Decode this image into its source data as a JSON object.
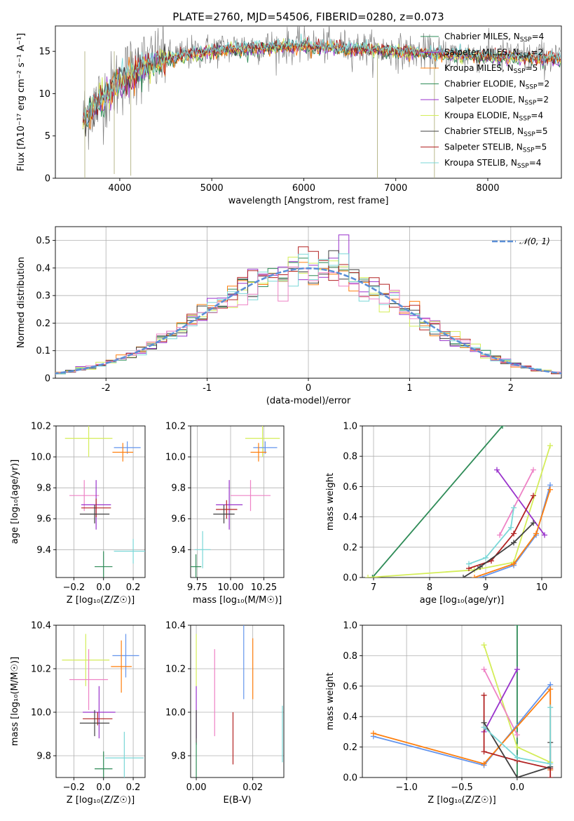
{
  "figure": {
    "title": "PLATE=2760, MJD=54506, FIBERID=0280, z=0.073",
    "colors": {
      "chabrier_miles": "#6495ed",
      "salpeter_miles": "#ff7f0e",
      "kroupa_miles": "#e07a20",
      "chabrier_elodie": "#2e8b57",
      "salpeter_elodie": "#9932cc",
      "kroupa_elodie": "#d4ed59",
      "chabrier_stelib": "#404040",
      "salpeter_stelib": "#b22222",
      "kroupa_stelib": "#7ad7d7",
      "pink": "#ee82c5",
      "gaussian": "#5b8fd6",
      "grid": "#b0b0b0"
    }
  },
  "legend": {
    "entries": [
      {
        "base": "Chabrier MILES, N",
        "sub": "SSP",
        "tail": "=4",
        "color": "#2e8b57"
      },
      {
        "base": "Salpeter MILES, N",
        "sub": "SSP",
        "tail": "=2",
        "color": "#9932cc"
      },
      {
        "base": "Kroupa MILES, N",
        "sub": "SSP",
        "tail": "=5",
        "color": "#ff7f0e"
      },
      {
        "base": "Chabrier ELODIE, N",
        "sub": "SSP",
        "tail": "=2",
        "color": "#2e8b57"
      },
      {
        "base": "Salpeter ELODIE, N",
        "sub": "SSP",
        "tail": "=2",
        "color": "#9932cc"
      },
      {
        "base": "Kroupa ELODIE, N",
        "sub": "SSP",
        "tail": "=4",
        "color": "#d4ed59"
      },
      {
        "base": "Chabrier STELIB, N",
        "sub": "SSP",
        "tail": "=5",
        "color": "#404040"
      },
      {
        "base": "Salpeter STELIB, N",
        "sub": "SSP",
        "tail": "=5",
        "color": "#b22222"
      },
      {
        "base": "Kroupa STELIB, N",
        "sub": "SSP",
        "tail": "=4",
        "color": "#7ad7d7"
      }
    ],
    "gaussian_label": "𝒩(0, 1)"
  },
  "chart_data": [
    {
      "id": "spectrum",
      "type": "line",
      "xlabel": "wavelength [Angstrom, rest frame]",
      "ylabel": "Flux [fλ10⁻¹⁷ erg cm⁻² s⁻¹ A⁻¹]",
      "xlim": [
        3300,
        8800
      ],
      "ylim": [
        0,
        18
      ],
      "xticks": [
        4000,
        5000,
        6000,
        7000,
        8000
      ],
      "yticks": [
        0,
        5,
        10,
        15
      ],
      "grid": false,
      "legend_position": "right",
      "data_trend": [
        [
          3600,
          7.0
        ],
        [
          3700,
          8.5
        ],
        [
          3800,
          9.5
        ],
        [
          3900,
          10.5
        ],
        [
          4000,
          11.5
        ],
        [
          4100,
          12.5
        ],
        [
          4200,
          13.2
        ],
        [
          4300,
          13.5
        ],
        [
          4400,
          13.8
        ],
        [
          4500,
          14.2
        ],
        [
          4700,
          14.6
        ],
        [
          5000,
          15.2
        ],
        [
          5300,
          15.5
        ],
        [
          5600,
          15.6
        ],
        [
          6000,
          15.7
        ],
        [
          6300,
          15.6
        ],
        [
          6600,
          15.4
        ],
        [
          7000,
          15.0
        ],
        [
          7500,
          14.7
        ],
        [
          8000,
          14.5
        ],
        [
          8500,
          14.3
        ],
        [
          8800,
          14.2
        ]
      ],
      "model_trend": [
        [
          3600,
          6.5
        ],
        [
          3800,
          9.5
        ],
        [
          4000,
          11.3
        ],
        [
          4200,
          12.8
        ],
        [
          4400,
          13.7
        ],
        [
          4700,
          14.5
        ],
        [
          5000,
          15.0
        ],
        [
          5500,
          15.4
        ],
        [
          6000,
          15.6
        ],
        [
          6500,
          15.3
        ],
        [
          7000,
          15.0
        ],
        [
          7500,
          14.6
        ],
        [
          8000,
          14.4
        ],
        [
          8500,
          14.2
        ],
        [
          8800,
          14.1
        ]
      ]
    },
    {
      "id": "residual_hist",
      "type": "histogram",
      "xlabel": "(data-model)/error",
      "ylabel": "Normed distribution",
      "xlim": [
        -2.5,
        2.5
      ],
      "ylim": [
        0,
        0.55
      ],
      "xticks": [
        -2,
        -1,
        0,
        1,
        2
      ],
      "yticks": [
        0.0,
        0.1,
        0.2,
        0.3,
        0.4,
        0.5
      ],
      "grid": true,
      "legend_position": "top-right",
      "bin_edges_step": 0.1,
      "gaussian": {
        "mu": 0,
        "sigma": 1
      },
      "highlight_bins": [
        {
          "x0": 0.3,
          "x1": 0.4,
          "y": 0.52,
          "color": "#9932cc"
        },
        {
          "x0": -0.1,
          "x1": 0.0,
          "y": 0.45,
          "color": "#7ad7d7"
        },
        {
          "x0": 0.0,
          "x1": 0.1,
          "y": 0.46,
          "color": "#b22222"
        }
      ]
    },
    {
      "id": "age_vs_Z",
      "type": "errorbar",
      "xlabel": "Z [log₁₀(Z/Z☉)]",
      "ylabel": "age  [log₁₀(age/yr)]",
      "xlim": [
        -0.32,
        0.28
      ],
      "ylim": [
        9.22,
        10.2
      ],
      "xticks": [
        -0.2,
        0.0,
        0.2
      ],
      "xticklabels": [
        "−0.2",
        "0.0",
        "0.2"
      ],
      "yticks": [
        9.4,
        9.6,
        9.8,
        10.0,
        10.2
      ],
      "yticklabels": [
        "9.4",
        "9.6",
        "9.8",
        "10.0",
        "10.2"
      ],
      "grid": true,
      "points": [
        {
          "x": -0.1,
          "y": 10.12,
          "xerr": 0.16,
          "yerr": 0.12,
          "color": "#d4ed59"
        },
        {
          "x": 0.16,
          "y": 10.06,
          "xerr": 0.09,
          "yerr": 0.04,
          "color": "#6495ed"
        },
        {
          "x": 0.13,
          "y": 10.03,
          "xerr": 0.07,
          "yerr": 0.06,
          "color": "#ff7f0e"
        },
        {
          "x": -0.13,
          "y": 9.75,
          "xerr": 0.1,
          "yerr": 0.1,
          "color": "#ee82c5"
        },
        {
          "x": -0.05,
          "y": 9.69,
          "xerr": 0.1,
          "yerr": 0.16,
          "color": "#9932cc"
        },
        {
          "x": -0.05,
          "y": 9.67,
          "xerr": 0.1,
          "yerr": 0.06,
          "color": "#b22222"
        },
        {
          "x": -0.06,
          "y": 9.63,
          "xerr": 0.1,
          "yerr": 0.06,
          "color": "#404040"
        },
        {
          "x": 0.2,
          "y": 9.39,
          "xerr": 0.13,
          "yerr": 0.08,
          "color": "#7ad7d7"
        },
        {
          "x": 0.0,
          "y": 9.29,
          "xerr": 0.06,
          "yerr": 0.1,
          "color": "#2e8b57"
        }
      ]
    },
    {
      "id": "age_vs_mass",
      "type": "errorbar",
      "xlabel": "mass [log₁₀(M/M☉)]",
      "ylabel": "",
      "xlim": [
        9.7,
        10.4
      ],
      "ylim": [
        9.22,
        10.2
      ],
      "xticks": [
        9.75,
        10.0,
        10.25
      ],
      "xticklabels": [
        "9.75",
        "10.00",
        "10.25"
      ],
      "yticks": [
        9.4,
        9.6,
        9.8,
        10.0,
        10.2
      ],
      "yticklabels": [
        "9.4",
        "9.6",
        "9.8",
        "10.0",
        "10.2"
      ],
      "grid": true,
      "points": [
        {
          "x": 10.24,
          "y": 10.12,
          "xerr": 0.13,
          "yerr": 0.12,
          "color": "#d4ed59"
        },
        {
          "x": 10.26,
          "y": 10.06,
          "xerr": 0.09,
          "yerr": 0.04,
          "color": "#6495ed"
        },
        {
          "x": 10.21,
          "y": 10.03,
          "xerr": 0.06,
          "yerr": 0.06,
          "color": "#ff7f0e"
        },
        {
          "x": 10.15,
          "y": 9.75,
          "xerr": 0.15,
          "yerr": 0.1,
          "color": "#ee82c5"
        },
        {
          "x": 9.99,
          "y": 9.69,
          "xerr": 0.1,
          "yerr": 0.16,
          "color": "#9932cc"
        },
        {
          "x": 9.97,
          "y": 9.66,
          "xerr": 0.08,
          "yerr": 0.06,
          "color": "#b22222"
        },
        {
          "x": 9.95,
          "y": 9.63,
          "xerr": 0.08,
          "yerr": 0.06,
          "color": "#404040"
        },
        {
          "x": 9.79,
          "y": 9.4,
          "xerr": 0.06,
          "yerr": 0.12,
          "color": "#7ad7d7"
        },
        {
          "x": 9.74,
          "y": 9.29,
          "xerr": 0.04,
          "yerr": 0.08,
          "color": "#2e8b57"
        }
      ]
    },
    {
      "id": "mass_weight_vs_age",
      "type": "line",
      "xlabel": "age  [log₁₀(age/yr)]",
      "ylabel": "mass weight",
      "xlim": [
        6.8,
        10.35
      ],
      "ylim": [
        0,
        1
      ],
      "xticks": [
        7,
        8,
        9,
        10
      ],
      "xticklabels": [
        "7",
        "8",
        "9",
        "10"
      ],
      "yticks": [
        0.0,
        0.2,
        0.4,
        0.6,
        0.8,
        1.0
      ],
      "yticklabels": [
        "0.0",
        "0.2",
        "0.4",
        "0.6",
        "0.8",
        "1.0"
      ],
      "grid": true,
      "series": [
        {
          "color": "#2e8b57",
          "x": [
            6.98,
            9.3
          ],
          "y": [
            0.0,
            1.0
          ]
        },
        {
          "color": "#d4ed59",
          "x": [
            6.9,
            8.8,
            9.5,
            10.15
          ],
          "y": [
            0.0,
            0.05,
            0.1,
            0.87
          ]
        },
        {
          "color": "#9932cc",
          "x": [
            9.2,
            10.05
          ],
          "y": [
            0.71,
            0.28
          ]
        },
        {
          "color": "#ee82c5",
          "x": [
            9.25,
            9.85
          ],
          "y": [
            0.28,
            0.71
          ]
        },
        {
          "color": "#6495ed",
          "x": [
            8.9,
            9.5,
            9.9,
            10.15
          ],
          "y": [
            0.0,
            0.08,
            0.28,
            0.61
          ]
        },
        {
          "color": "#ff7f0e",
          "x": [
            8.8,
            9.5,
            9.9,
            10.15
          ],
          "y": [
            0.0,
            0.09,
            0.29,
            0.58
          ]
        },
        {
          "color": "#b22222",
          "x": [
            8.7,
            9.1,
            9.5,
            9.85
          ],
          "y": [
            0.06,
            0.11,
            0.29,
            0.54
          ]
        },
        {
          "color": "#404040",
          "x": [
            8.6,
            8.9,
            9.5,
            9.85
          ],
          "y": [
            0.0,
            0.07,
            0.23,
            0.36
          ]
        },
        {
          "color": "#7ad7d7",
          "x": [
            8.7,
            9.0,
            9.45,
            9.5
          ],
          "y": [
            0.09,
            0.13,
            0.33,
            0.46
          ]
        }
      ]
    },
    {
      "id": "mass_vs_Z",
      "type": "errorbar",
      "xlabel": "Z [log₁₀(Z/Z☉)]",
      "ylabel": "mass [log₁₀(M/M☉)]",
      "xlim": [
        -0.32,
        0.28
      ],
      "ylim": [
        9.7,
        10.4
      ],
      "xticks": [
        -0.2,
        0.0,
        0.2
      ],
      "xticklabels": [
        "−0.2",
        "0.0",
        "0.2"
      ],
      "yticks": [
        9.8,
        10.0,
        10.2,
        10.4
      ],
      "yticklabels": [
        "9.8",
        "10.0",
        "10.2",
        "10.4"
      ],
      "grid": true,
      "points": [
        {
          "x": -0.12,
          "y": 10.24,
          "xerr": 0.16,
          "yerr": 0.12,
          "color": "#d4ed59"
        },
        {
          "x": 0.15,
          "y": 10.26,
          "xerr": 0.09,
          "yerr": 0.1,
          "color": "#6495ed"
        },
        {
          "x": 0.12,
          "y": 10.21,
          "xerr": 0.07,
          "yerr": 0.12,
          "color": "#ff7f0e"
        },
        {
          "x": -0.1,
          "y": 10.15,
          "xerr": 0.13,
          "yerr": 0.14,
          "color": "#ee82c5"
        },
        {
          "x": -0.03,
          "y": 10.0,
          "xerr": 0.11,
          "yerr": 0.12,
          "color": "#9932cc"
        },
        {
          "x": -0.04,
          "y": 9.97,
          "xerr": 0.1,
          "yerr": 0.03,
          "color": "#b22222"
        },
        {
          "x": -0.06,
          "y": 9.95,
          "xerr": 0.1,
          "yerr": 0.06,
          "color": "#404040"
        },
        {
          "x": 0.14,
          "y": 9.79,
          "xerr": 0.13,
          "yerr": 0.12,
          "color": "#7ad7d7"
        },
        {
          "x": 0.0,
          "y": 9.74,
          "xerr": 0.06,
          "yerr": 0.08,
          "color": "#2e8b57"
        }
      ]
    },
    {
      "id": "mass_vs_ebv",
      "type": "errorbar",
      "xlabel": "E(B-V)",
      "ylabel": "",
      "xlim": [
        -0.002,
        0.031
      ],
      "ylim": [
        9.7,
        10.4
      ],
      "xticks": [
        0.0,
        0.02
      ],
      "xticklabels": [
        "0.00",
        "0.02"
      ],
      "yticks": [
        9.8,
        10.0,
        10.2,
        10.4
      ],
      "yticklabels": [
        "9.8",
        "10.0",
        "10.2",
        "10.4"
      ],
      "grid": true,
      "points": [
        {
          "x": 0.0,
          "y": 10.24,
          "xerr": 0,
          "yerr": 0.12,
          "color": "#d4ed59"
        },
        {
          "x": 0.0,
          "y": 10.0,
          "xerr": 0,
          "yerr": 0.12,
          "color": "#9932cc"
        },
        {
          "x": 0.0,
          "y": 9.93,
          "xerr": 0,
          "yerr": 0.08,
          "color": "#404040"
        },
        {
          "x": 0.0,
          "y": 9.78,
          "xerr": 0,
          "yerr": 0.08,
          "color": "#2e8b57"
        },
        {
          "x": 0.0065,
          "y": 10.09,
          "xerr": 0,
          "yerr": 0.2,
          "color": "#ee82c5"
        },
        {
          "x": 0.013,
          "y": 9.88,
          "xerr": 0,
          "yerr": 0.12,
          "color": "#b22222"
        },
        {
          "x": 0.0168,
          "y": 10.26,
          "xerr": 0,
          "yerr": 0.2,
          "color": "#6495ed"
        },
        {
          "x": 0.02,
          "y": 10.2,
          "xerr": 0,
          "yerr": 0.14,
          "color": "#ff7f0e"
        },
        {
          "x": 0.0305,
          "y": 9.9,
          "xerr": 0,
          "yerr": 0.13,
          "color": "#7ad7d7"
        }
      ]
    },
    {
      "id": "mass_weight_vs_Z",
      "type": "line",
      "xlabel": "Z [log₁₀(Z/Z☉)]",
      "ylabel": "mass weight",
      "xlim": [
        -1.4,
        0.4
      ],
      "ylim": [
        0,
        1
      ],
      "xticks": [
        -1.0,
        -0.5,
        0.0
      ],
      "xticklabels": [
        "−1.0",
        "−0.5",
        "0.0"
      ],
      "yticks": [
        0.0,
        0.2,
        0.4,
        0.6,
        0.8,
        1.0
      ],
      "yticklabels": [
        "0.0",
        "0.2",
        "0.4",
        "0.6",
        "0.8",
        "1.0"
      ],
      "grid": true,
      "series": [
        {
          "color": "#2e8b57",
          "x": [
            0.0,
            0.0
          ],
          "y": [
            0.0,
            1.0
          ]
        },
        {
          "color": "#d4ed59",
          "x": [
            -0.3,
            0.0,
            0.3
          ],
          "y": [
            0.87,
            0.2,
            0.1
          ]
        },
        {
          "color": "#ee82c5",
          "x": [
            -0.3,
            0.0
          ],
          "y": [
            0.71,
            0.28
          ]
        },
        {
          "color": "#9932cc",
          "x": [
            -0.3,
            0.0
          ],
          "y": [
            0.3,
            0.71
          ]
        },
        {
          "color": "#6495ed",
          "x": [
            -1.3,
            -0.3,
            0.3,
            0.3
          ],
          "y": [
            0.27,
            0.08,
            0.61,
            0.05
          ]
        },
        {
          "color": "#ff7f0e",
          "x": [
            -1.3,
            -0.3,
            0.3,
            0.3
          ],
          "y": [
            0.29,
            0.09,
            0.58,
            0.05
          ]
        },
        {
          "color": "#b22222",
          "x": [
            -0.3,
            -0.3,
            0.0,
            0.3,
            0.3
          ],
          "y": [
            0.54,
            0.17,
            0.11,
            0.06,
            0.0
          ]
        },
        {
          "color": "#404040",
          "x": [
            -0.3,
            0.0,
            0.3,
            0.3
          ],
          "y": [
            0.36,
            0.0,
            0.07,
            0.23
          ]
        },
        {
          "color": "#7ad7d7",
          "x": [
            -0.3,
            0.0,
            0.3,
            0.3
          ],
          "y": [
            0.33,
            0.13,
            0.09,
            0.46
          ]
        }
      ]
    }
  ]
}
